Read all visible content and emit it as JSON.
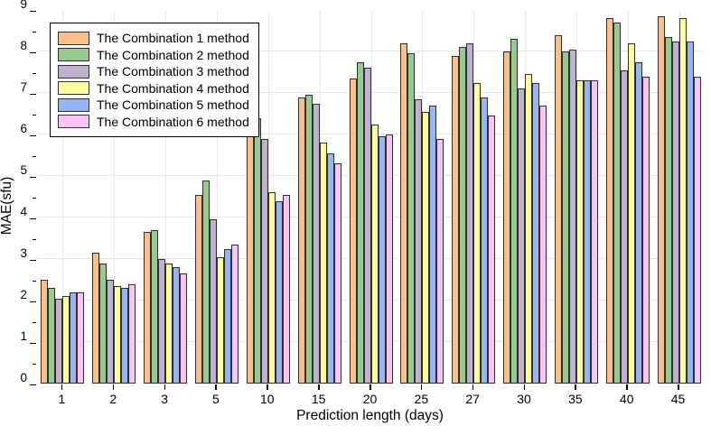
{
  "chart_data": {
    "type": "bar",
    "title": "",
    "xlabel": "Prediction length (days)",
    "ylabel": "MAE(sfu)",
    "ylim": [
      0,
      9
    ],
    "y_major_step": 1,
    "y_minor_step": 0.5,
    "grid": true,
    "legend_position": "top-left",
    "axis_color": "#000000",
    "gridline_color": "#e7e7e7",
    "bar_edge_color": "#2f2f2f",
    "categories": [
      "1",
      "2",
      "3",
      "5",
      "10",
      "15",
      "20",
      "25",
      "27",
      "30",
      "35",
      "40",
      "45"
    ],
    "series": [
      {
        "name": "The Combination 1 method",
        "color": "#FAC089",
        "values": [
          2.5,
          3.15,
          3.65,
          4.55,
          6.85,
          6.9,
          7.35,
          8.2,
          7.9,
          8.0,
          8.4,
          8.8,
          8.85
        ]
      },
      {
        "name": "The Combination 2 method",
        "color": "#96CB8F",
        "values": [
          2.3,
          2.9,
          3.7,
          4.9,
          6.4,
          6.95,
          7.75,
          7.95,
          8.1,
          8.3,
          8.0,
          8.7,
          8.35
        ]
      },
      {
        "name": "The Combination 3 method",
        "color": "#BFB2CF",
        "values": [
          2.05,
          2.5,
          3.0,
          3.95,
          5.9,
          6.75,
          7.6,
          6.85,
          8.2,
          7.1,
          8.05,
          7.55,
          8.25
        ]
      },
      {
        "name": "The Combination 4 method",
        "color": "#FDFD9E",
        "values": [
          2.1,
          2.35,
          2.9,
          3.05,
          4.6,
          5.8,
          6.25,
          6.55,
          7.25,
          7.45,
          7.3,
          8.2,
          8.8
        ]
      },
      {
        "name": "The Combination 5 method",
        "color": "#96B5F2",
        "values": [
          2.2,
          2.3,
          2.8,
          3.25,
          4.4,
          5.55,
          5.95,
          6.7,
          6.9,
          7.25,
          7.3,
          7.75,
          8.25
        ]
      },
      {
        "name": "The Combination 6 method",
        "color": "#FBC2F5",
        "values": [
          2.2,
          2.4,
          2.65,
          3.35,
          4.55,
          5.3,
          6.0,
          5.9,
          6.45,
          6.7,
          7.3,
          7.4,
          7.4
        ]
      }
    ]
  }
}
